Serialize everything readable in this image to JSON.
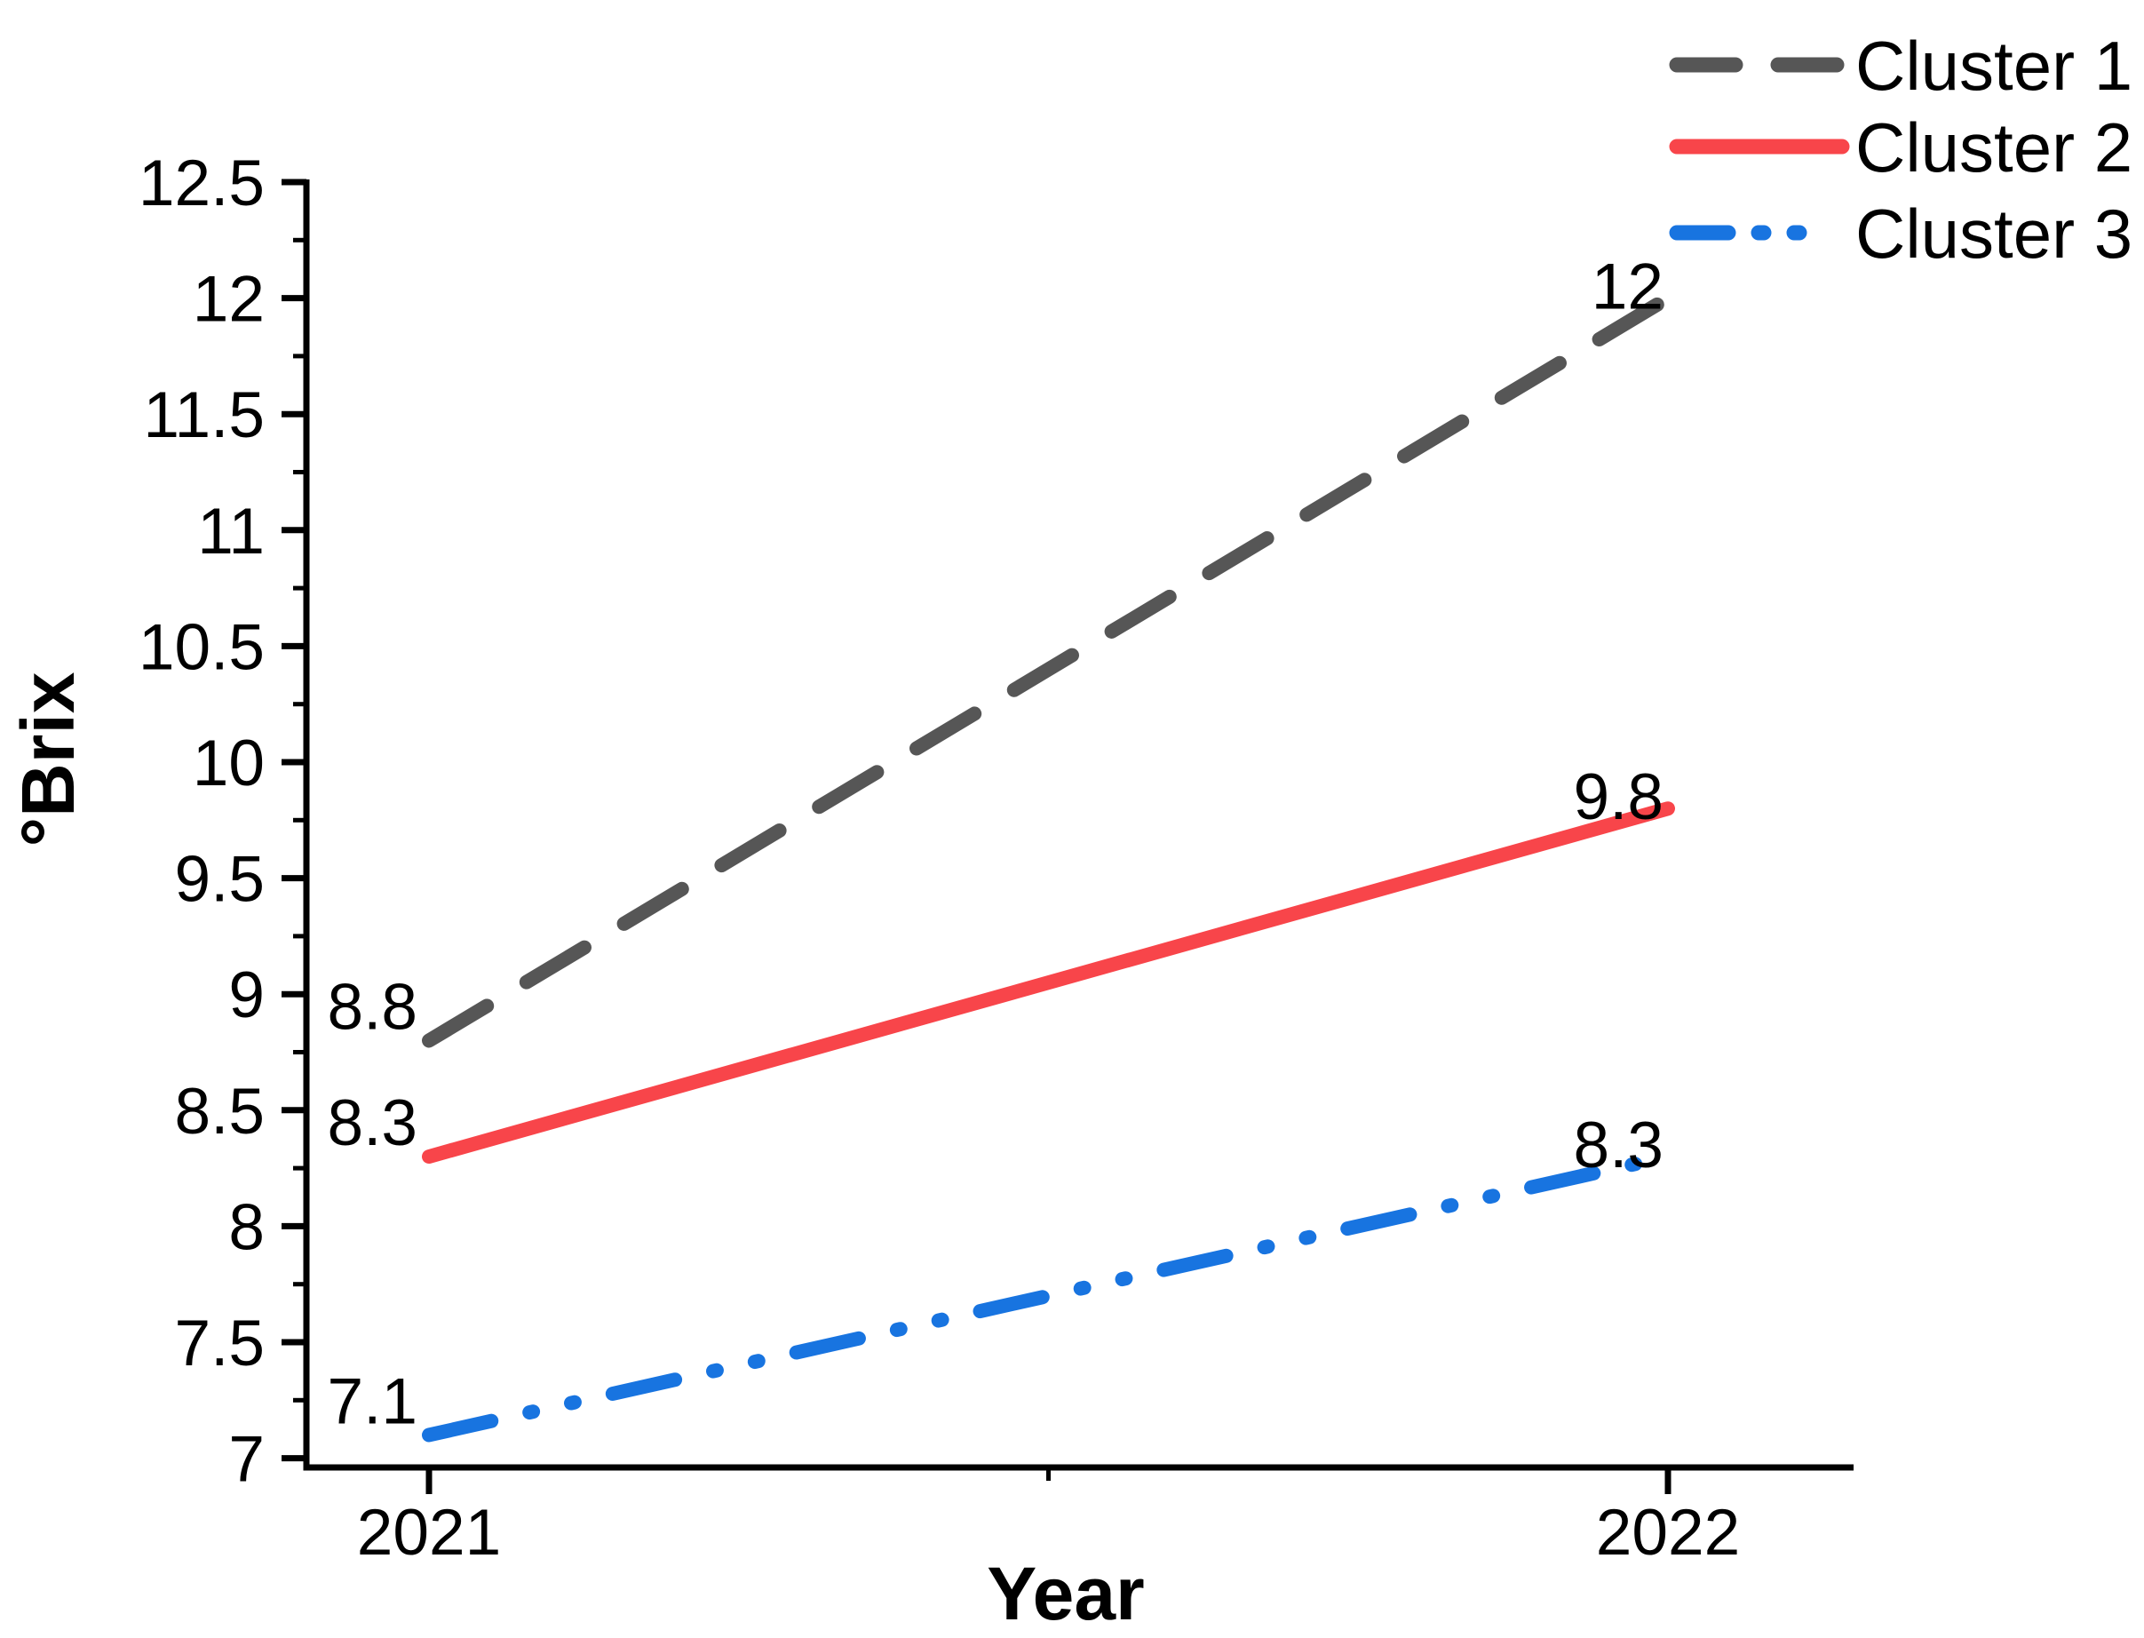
{
  "chart_data": {
    "type": "line",
    "title": "",
    "xlabel": "Year",
    "ylabel": "°Brix",
    "x_categories": [
      "2021",
      "2022"
    ],
    "ylim": [
      6.95,
      12.5
    ],
    "grid": false,
    "legend_position": "top-right",
    "axis_color": "#000000",
    "y_major_ticks": [
      7,
      7.5,
      8,
      8.5,
      9,
      9.5,
      10,
      10.5,
      11,
      11.5,
      12,
      12.5
    ],
    "y_major_tick_labels": [
      "7",
      "7.5",
      "8",
      "8.5",
      "9",
      "9.5",
      "10",
      "10.5",
      "11",
      "11.5",
      "12",
      "12.5"
    ],
    "y_minor_ticks": [
      7.25,
      7.75,
      8.25,
      8.75,
      9.25,
      9.75,
      10.25,
      10.75,
      11.25,
      11.75,
      12.25
    ],
    "x_minor_tick_fraction": [
      0.5
    ],
    "series": [
      {
        "name": "Cluster 1",
        "color": "#565656",
        "line_style": "dashed",
        "values": [
          8.8,
          12
        ],
        "point_labels": [
          "8.8",
          "12"
        ]
      },
      {
        "name": "Cluster 2",
        "color": "#F8454A",
        "line_style": "solid",
        "values": [
          8.3,
          9.8
        ],
        "point_labels": [
          "8.3",
          "9.8"
        ]
      },
      {
        "name": "Cluster 3",
        "color": "#1874E0",
        "line_style": "dash-dot-dot",
        "values": [
          7.1,
          8.3
        ],
        "point_labels": [
          "7.1",
          "8.3"
        ]
      }
    ],
    "legend_labels": [
      "Cluster 1",
      "Cluster 2",
      "Cluster 3"
    ]
  }
}
